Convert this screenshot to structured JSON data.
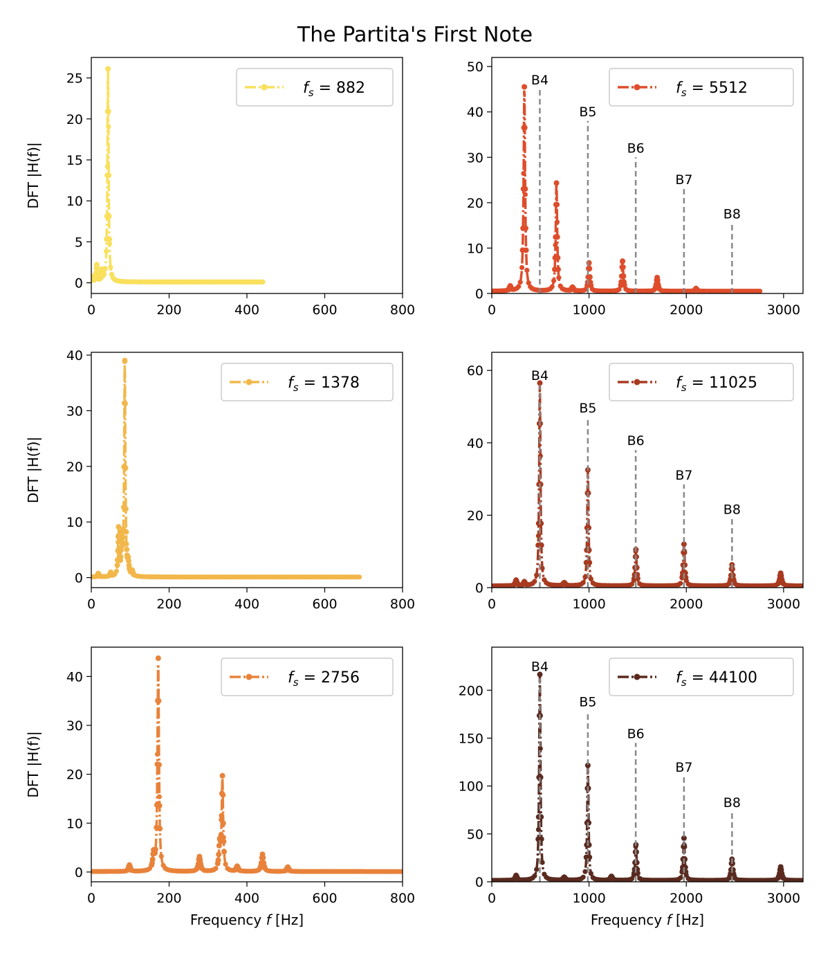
{
  "figure": {
    "title": "The Partita's First Note"
  },
  "chart_data": [
    {
      "type": "line",
      "legend": "f_s = 882",
      "legend_var": "f",
      "legend_sub": "s",
      "legend_rest": " = 882",
      "color": "#F9E05D",
      "xlabel": "",
      "ylabel": "DFT |H(f)|",
      "xlim": [
        0,
        800
      ],
      "ylim": [
        -1.3,
        27.5
      ],
      "xticks": [
        0,
        200,
        400,
        600,
        800
      ],
      "yticks": [
        0,
        5,
        10,
        15,
        20,
        25
      ],
      "data_xmax": 441,
      "baseline": 0.1,
      "peaks": [
        [
          2,
          0.6,
          1.5
        ],
        [
          14,
          2.0,
          1.5
        ],
        [
          28,
          1.2,
          1.5
        ],
        [
          43,
          26,
          1.8
        ]
      ],
      "notes": [],
      "legend_placement": "upper-right"
    },
    {
      "type": "line",
      "legend": "f_s = 5512",
      "legend_var": "f",
      "legend_sub": "s",
      "legend_rest": " = 5512",
      "color": "#DE4D2B",
      "xlabel": "",
      "ylabel": "",
      "xlim": [
        0,
        3200
      ],
      "ylim": [
        0,
        52
      ],
      "xticks": [
        0,
        1000,
        2000,
        3000
      ],
      "yticks": [
        0,
        10,
        20,
        30,
        40,
        50
      ],
      "data_xmax": 2756,
      "baseline": 0.5,
      "peaks": [
        [
          190,
          1.0,
          10
        ],
        [
          335,
          45,
          9
        ],
        [
          665,
          23.8,
          9
        ],
        [
          1000,
          6.2,
          9
        ],
        [
          1345,
          6.6,
          9
        ],
        [
          1700,
          3.0,
          10
        ],
        [
          830,
          0.8,
          12
        ],
        [
          2100,
          0.6,
          10
        ]
      ],
      "notes": [
        {
          "label": "B4",
          "x": 494,
          "top": 45
        },
        {
          "label": "B5",
          "x": 988,
          "top": 38
        },
        {
          "label": "B6",
          "x": 1480,
          "top": 30
        },
        {
          "label": "B7",
          "x": 1976,
          "top": 23
        },
        {
          "label": "B8",
          "x": 2470,
          "top": 15.5
        }
      ],
      "legend_placement": "upper-right"
    },
    {
      "type": "line",
      "legend": "f_s = 1378",
      "legend_var": "f",
      "legend_sub": "s",
      "legend_rest": " = 1378",
      "color": "#F2B74A",
      "xlabel": "",
      "ylabel": "DFT |H(f)|",
      "xlim": [
        0,
        800
      ],
      "ylim": [
        -1.8,
        40.5
      ],
      "xticks": [
        0,
        200,
        400,
        600,
        800
      ],
      "yticks": [
        0,
        10,
        20,
        30,
        40
      ],
      "data_xmax": 689,
      "baseline": 0.1,
      "peaks": [
        [
          18,
          0.6,
          2
        ],
        [
          50,
          0.7,
          2
        ],
        [
          70,
          8.3,
          1.6
        ],
        [
          78,
          6.0,
          1.6
        ],
        [
          86,
          38.5,
          1.8
        ],
        [
          95,
          2.0,
          2
        ],
        [
          105,
          0.8,
          2
        ]
      ],
      "notes": [],
      "legend_placement": "upper-right"
    },
    {
      "type": "line",
      "legend": "f_s = 11025",
      "legend_var": "f",
      "legend_sub": "s",
      "legend_rest": " = 11025",
      "color": "#A83A20",
      "xlabel": "",
      "ylabel": "",
      "xlim": [
        0,
        3200
      ],
      "ylim": [
        0,
        65
      ],
      "xticks": [
        0,
        1000,
        2000,
        3000
      ],
      "yticks": [
        0,
        20,
        40,
        60
      ],
      "data_xmax": 3200,
      "baseline": 0.5,
      "peaks": [
        [
          250,
          1.5,
          10
        ],
        [
          335,
          1.0,
          10
        ],
        [
          494,
          56,
          8
        ],
        [
          988,
          32,
          8
        ],
        [
          1482,
          10,
          9
        ],
        [
          1976,
          11.5,
          9
        ],
        [
          2470,
          5.8,
          10
        ],
        [
          2970,
          3.5,
          12
        ],
        [
          745,
          0.8,
          12
        ]
      ],
      "notes": [
        {
          "label": "B4",
          "x": 494,
          "top": 56
        },
        {
          "label": "B5",
          "x": 988,
          "top": 47
        },
        {
          "label": "B6",
          "x": 1480,
          "top": 38
        },
        {
          "label": "B7",
          "x": 1976,
          "top": 28.5
        },
        {
          "label": "B8",
          "x": 2470,
          "top": 19
        }
      ],
      "legend_placement": "upper-right"
    },
    {
      "type": "line",
      "legend": "f_s = 2756",
      "legend_var": "f",
      "legend_sub": "s",
      "legend_rest": " = 2756",
      "color": "#E8823A",
      "xlabel": "Frequency f [Hz]",
      "xlabel_pre": "Frequency ",
      "xlabel_var": "f",
      "xlabel_post": " [Hz]",
      "ylabel": "DFT |H(f)|",
      "xlim": [
        0,
        800
      ],
      "ylim": [
        -2,
        46
      ],
      "xticks": [
        0,
        200,
        400,
        600,
        800
      ],
      "yticks": [
        0,
        10,
        20,
        30,
        40
      ],
      "data_xmax": 800,
      "baseline": 0.1,
      "peaks": [
        [
          98,
          1.3,
          2.5
        ],
        [
          160,
          3.0,
          2.5
        ],
        [
          172,
          43.5,
          2.2
        ],
        [
          278,
          3.0,
          3
        ],
        [
          330,
          5.0,
          2.5
        ],
        [
          337,
          19,
          2.2
        ],
        [
          375,
          1.0,
          3
        ],
        [
          440,
          3.5,
          3
        ],
        [
          505,
          0.9,
          3
        ]
      ],
      "notes": [],
      "legend_placement": "upper-right"
    },
    {
      "type": "line",
      "legend": "f_s = 44100",
      "legend_var": "f",
      "legend_sub": "s",
      "legend_rest": " = 44100",
      "color": "#5A2A1F",
      "xlabel": "Frequency f [Hz]",
      "xlabel_pre": "Frequency ",
      "xlabel_var": "f",
      "xlabel_post": " [Hz]",
      "ylabel": "",
      "xlim": [
        0,
        3200
      ],
      "ylim": [
        0,
        245
      ],
      "xticks": [
        0,
        1000,
        2000,
        3000
      ],
      "yticks": [
        0,
        50,
        100,
        150,
        200
      ],
      "data_xmax": 3200,
      "baseline": 1.5,
      "peaks": [
        [
          250,
          5,
          10
        ],
        [
          494,
          215,
          8
        ],
        [
          988,
          120,
          8
        ],
        [
          1482,
          37,
          9
        ],
        [
          1976,
          44,
          9
        ],
        [
          2470,
          22,
          10
        ],
        [
          2970,
          14,
          12
        ],
        [
          745,
          3,
          12
        ],
        [
          1230,
          4,
          12
        ]
      ],
      "notes": [
        {
          "label": "B4",
          "x": 494,
          "top": 215
        },
        {
          "label": "B5",
          "x": 988,
          "top": 178
        },
        {
          "label": "B6",
          "x": 1480,
          "top": 145
        },
        {
          "label": "B7",
          "x": 1976,
          "top": 110
        },
        {
          "label": "B8",
          "x": 2470,
          "top": 73
        }
      ],
      "legend_placement": "upper-right"
    }
  ]
}
